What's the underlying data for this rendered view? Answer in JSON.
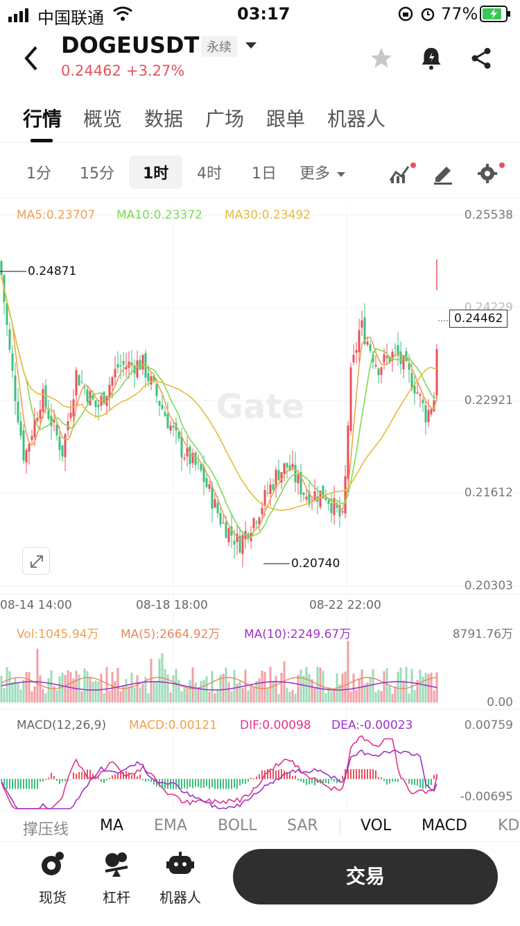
{
  "status": {
    "carrier": "中国联通",
    "time": "03:17",
    "battery": "77%"
  },
  "header": {
    "symbol": "DOGEUSDT",
    "contract_type": "永续",
    "price": "0.24462",
    "change": "+3.27%"
  },
  "tabs": [
    "行情",
    "概览",
    "数据",
    "广场",
    "跟单",
    "机器人"
  ],
  "active_tab": "行情",
  "timeframes": [
    "1分",
    "15分",
    "1时",
    "4时",
    "1日",
    "更多"
  ],
  "active_timeframe": "1时",
  "ma_legend": {
    "ma5": "MA5:0.23707",
    "ma10": "MA10:0.23372",
    "ma30": "MA30:0.23492"
  },
  "price_axis": [
    "0.25538",
    "0.24229",
    "0.22921",
    "0.21612",
    "0.20303"
  ],
  "current_price_tag": "0.24462",
  "high_mark": "0.24871",
  "low_mark": "0.20740",
  "time_axis": [
    "08-14 14:00",
    "08-18 18:00",
    "08-22 22:00"
  ],
  "watermark": "Gate",
  "volume": {
    "vol": "Vol:1045.94万",
    "ma5": "MA(5):2664.92万",
    "ma10": "MA(10):2249.67万",
    "max": "8791.76万",
    "min": "0.00"
  },
  "macd": {
    "title": "MACD(12,26,9)",
    "macd": "MACD:0.00121",
    "dif": "DIF:0.00098",
    "dea": "DEA:-0.00023",
    "max": "0.00759",
    "min": "-0.00695"
  },
  "indicators": [
    "撑压线",
    "MA",
    "EMA",
    "BOLL",
    "SAR",
    "VOL",
    "MACD",
    "KD"
  ],
  "nav": {
    "spot": "现货",
    "margin": "杠杆",
    "bot": "机器人",
    "trade": "交易"
  },
  "colors": {
    "up": "#e8505b",
    "down": "#3bc07c",
    "ma5": "#f0a050",
    "ma10": "#7ed957",
    "ma30": "#e8b93a",
    "dif": "#e0348a",
    "dea": "#9b33c8"
  },
  "icons": [
    "signal-icon",
    "wifi-icon",
    "alarm-icon",
    "battery-icon",
    "back-icon",
    "dropdown-icon",
    "star-icon",
    "alert-icon",
    "share-icon",
    "indicator-icon",
    "draw-icon",
    "settings-icon",
    "expand-icon",
    "spot-icon",
    "margin-icon",
    "bot-icon"
  ]
}
